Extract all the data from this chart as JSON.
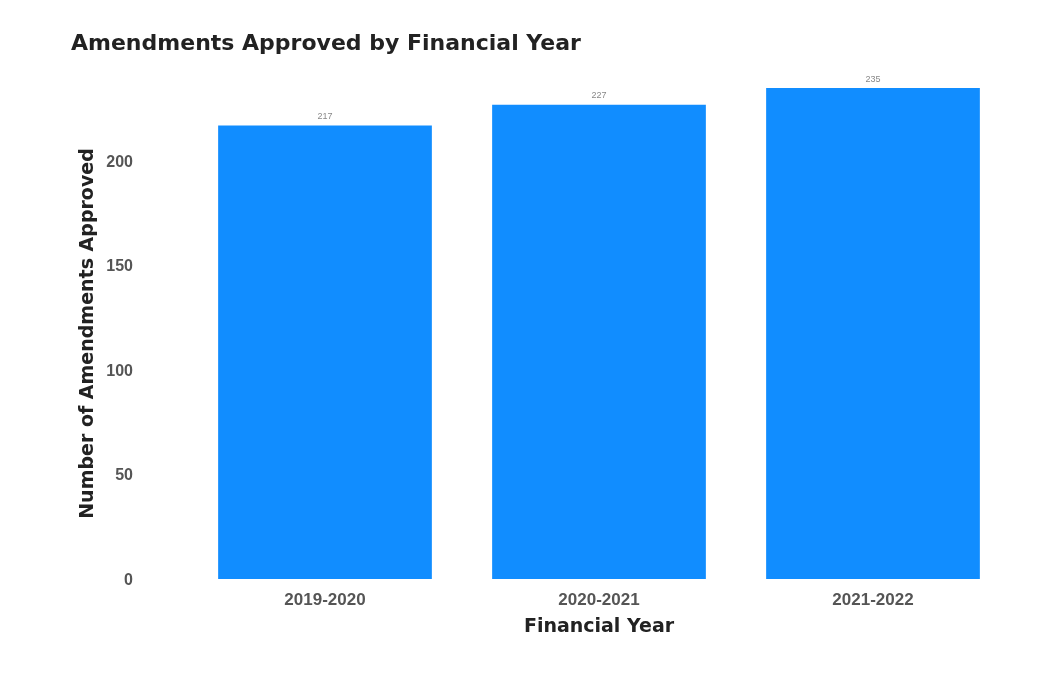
{
  "chart_data": {
    "type": "bar",
    "title": "Amendments Approved by Financial Year",
    "xlabel": "Financial Year",
    "ylabel": "Number of Amendments Approved",
    "categories": [
      "2019-2020",
      "2020-2021",
      "2021-2022"
    ],
    "values": [
      217,
      227,
      235
    ],
    "color": "#118dff",
    "ylim": [
      0,
      235
    ],
    "yticks": [
      0,
      50,
      100,
      150,
      200
    ],
    "grid": false,
    "data_labels": true
  }
}
